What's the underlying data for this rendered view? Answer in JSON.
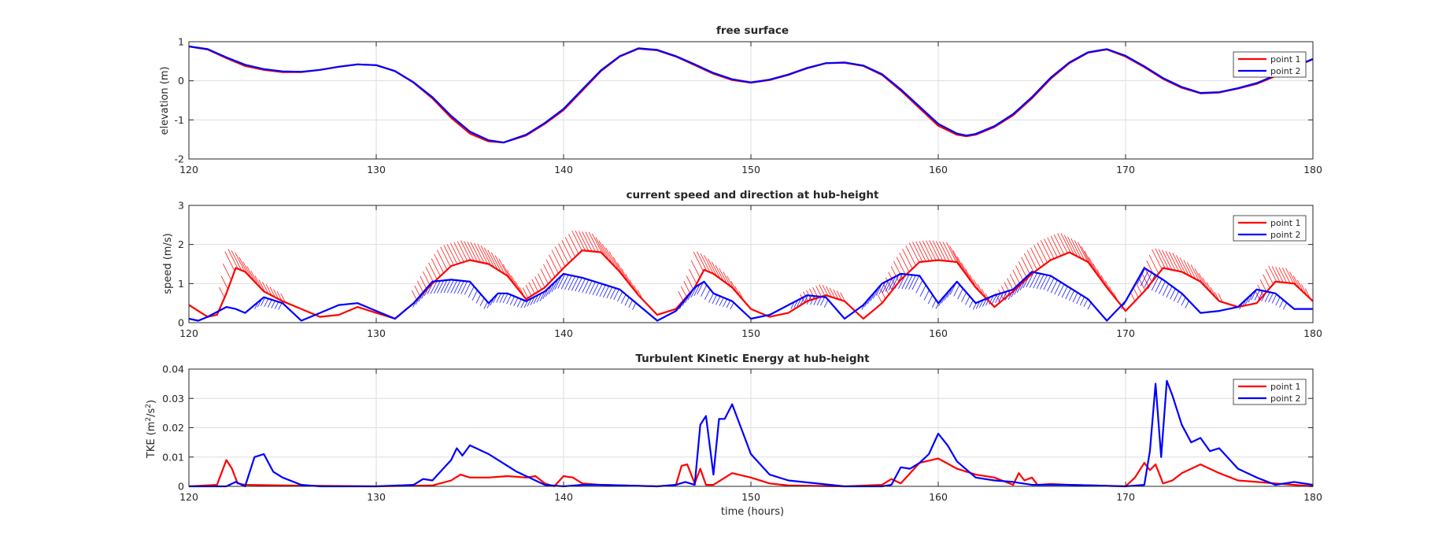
{
  "chart_data": [
    {
      "type": "line",
      "title": "free surface",
      "xlabel": "",
      "ylabel": "elevation (m)",
      "xlim": [
        120,
        180
      ],
      "ylim": [
        -2,
        1
      ],
      "xticks": [
        "120",
        "130",
        "140",
        "150",
        "160",
        "170",
        "180"
      ],
      "yticks": [
        "-2",
        "-1",
        "0",
        "1"
      ],
      "grid": true,
      "legend_position": "top-right",
      "series": [
        {
          "name": "point 1",
          "color": "#ff0000",
          "x": [
            120,
            121,
            122,
            123,
            124,
            125,
            126,
            127,
            128,
            129,
            130,
            131,
            132,
            133,
            134,
            135,
            136,
            136.8,
            138,
            139,
            140,
            141,
            142,
            143,
            144,
            145,
            146,
            147,
            148,
            149,
            150,
            151,
            152,
            153,
            154,
            155,
            156,
            157,
            158,
            159,
            160,
            161,
            161.5,
            162,
            163,
            164,
            165,
            166,
            167,
            168,
            169,
            170,
            171,
            172,
            173,
            174,
            175,
            176,
            177,
            178,
            179,
            180
          ],
          "y": [
            0.88,
            0.8,
            0.58,
            0.38,
            0.28,
            0.22,
            0.22,
            0.28,
            0.36,
            0.42,
            0.4,
            0.25,
            -0.05,
            -0.45,
            -0.95,
            -1.35,
            -1.55,
            -1.58,
            -1.4,
            -1.1,
            -0.75,
            -0.25,
            0.25,
            0.62,
            0.82,
            0.78,
            0.62,
            0.4,
            0.18,
            0.02,
            -0.05,
            0.02,
            0.15,
            0.32,
            0.45,
            0.46,
            0.38,
            0.15,
            -0.25,
            -0.7,
            -1.15,
            -1.38,
            -1.42,
            -1.38,
            -1.18,
            -0.88,
            -0.45,
            0.05,
            0.45,
            0.72,
            0.8,
            0.62,
            0.35,
            0.05,
            -0.18,
            -0.32,
            -0.3,
            -0.2,
            -0.08,
            0.12,
            0.35,
            0.55
          ]
        },
        {
          "name": "point 2",
          "color": "#0000ff",
          "x": [
            120,
            121,
            122,
            123,
            124,
            125,
            126,
            127,
            128,
            129,
            130,
            131,
            132,
            133,
            134,
            135,
            136,
            136.8,
            138,
            139,
            140,
            141,
            142,
            143,
            144,
            145,
            146,
            147,
            148,
            149,
            150,
            151,
            152,
            153,
            154,
            155,
            156,
            157,
            158,
            159,
            160,
            161,
            161.5,
            162,
            163,
            164,
            165,
            166,
            167,
            168,
            169,
            170,
            171,
            172,
            173,
            174,
            175,
            176,
            177,
            178,
            179,
            180
          ],
          "y": [
            0.88,
            0.81,
            0.6,
            0.41,
            0.3,
            0.24,
            0.23,
            0.28,
            0.36,
            0.42,
            0.4,
            0.25,
            -0.04,
            -0.42,
            -0.9,
            -1.3,
            -1.52,
            -1.58,
            -1.38,
            -1.08,
            -0.72,
            -0.22,
            0.27,
            0.63,
            0.83,
            0.79,
            0.63,
            0.42,
            0.2,
            0.04,
            -0.04,
            0.03,
            0.16,
            0.33,
            0.45,
            0.47,
            0.39,
            0.17,
            -0.22,
            -0.66,
            -1.1,
            -1.35,
            -1.4,
            -1.36,
            -1.16,
            -0.85,
            -0.42,
            0.08,
            0.47,
            0.73,
            0.81,
            0.64,
            0.37,
            0.07,
            -0.16,
            -0.31,
            -0.29,
            -0.19,
            -0.06,
            0.14,
            0.36,
            0.56
          ]
        }
      ]
    },
    {
      "type": "line",
      "title": "current speed and direction at hub-height",
      "xlabel": "",
      "ylabel": "speed (m/s)",
      "xlim": [
        120,
        180
      ],
      "ylim": [
        0,
        3
      ],
      "xticks": [
        "120",
        "130",
        "140",
        "150",
        "160",
        "170",
        "180"
      ],
      "yticks": [
        "0",
        "1",
        "2",
        "3"
      ],
      "grid": true,
      "legend_position": "top-right",
      "direction_hatching": true,
      "series": [
        {
          "name": "point 1",
          "color": "#ff0000",
          "x": [
            120,
            121,
            121.5,
            122,
            122.5,
            123,
            124,
            125,
            126,
            127,
            128,
            129,
            130,
            131,
            132,
            133,
            134,
            135,
            136,
            137,
            138,
            139,
            140,
            141,
            142,
            143,
            144,
            145,
            146,
            147,
            147.5,
            148,
            149,
            150,
            151,
            152,
            153,
            154,
            155,
            156,
            157,
            158,
            159,
            160,
            161,
            162,
            163,
            164,
            165,
            166,
            167,
            168,
            169,
            170,
            171,
            172,
            173,
            174,
            175,
            176,
            177,
            178,
            179,
            180
          ],
          "y": [
            0.45,
            0.15,
            0.2,
            0.75,
            1.4,
            1.3,
            0.8,
            0.55,
            0.35,
            0.15,
            0.2,
            0.4,
            0.25,
            0.1,
            0.5,
            1.0,
            1.45,
            1.6,
            1.5,
            1.2,
            0.6,
            0.9,
            1.4,
            1.85,
            1.8,
            1.3,
            0.7,
            0.2,
            0.35,
            0.9,
            1.35,
            1.25,
            0.9,
            0.35,
            0.15,
            0.25,
            0.55,
            0.7,
            0.55,
            0.1,
            0.5,
            1.1,
            1.55,
            1.6,
            1.55,
            0.9,
            0.4,
            0.8,
            1.25,
            1.6,
            1.8,
            1.55,
            0.9,
            0.3,
            0.8,
            1.4,
            1.3,
            1.05,
            0.55,
            0.4,
            0.5,
            1.05,
            1.0,
            0.55
          ]
        },
        {
          "name": "point 2",
          "color": "#0000ff",
          "x": [
            120,
            120.5,
            121,
            122,
            122.5,
            123,
            124,
            125,
            126,
            127,
            128,
            129,
            130,
            131,
            132,
            133,
            134,
            135,
            136,
            136.5,
            137,
            138,
            139,
            140,
            141,
            142,
            143,
            144,
            145,
            146,
            147,
            147.5,
            148,
            149,
            150,
            151,
            152,
            153,
            154,
            155,
            156,
            157,
            158,
            159,
            160,
            161,
            162,
            163,
            164,
            165,
            166,
            167,
            168,
            169,
            170,
            171,
            172,
            173,
            174,
            175,
            176,
            177,
            178,
            179,
            180
          ],
          "y": [
            0.1,
            0.05,
            0.15,
            0.4,
            0.35,
            0.25,
            0.65,
            0.5,
            0.05,
            0.25,
            0.45,
            0.5,
            0.3,
            0.1,
            0.5,
            1.05,
            1.1,
            1.05,
            0.5,
            0.75,
            0.75,
            0.55,
            0.8,
            1.25,
            1.15,
            1.0,
            0.85,
            0.45,
            0.05,
            0.3,
            0.9,
            1.05,
            0.75,
            0.55,
            0.1,
            0.2,
            0.45,
            0.7,
            0.65,
            0.1,
            0.45,
            1.0,
            1.25,
            1.2,
            0.5,
            1.05,
            0.5,
            0.7,
            0.85,
            1.3,
            1.2,
            0.9,
            0.6,
            0.05,
            0.55,
            1.4,
            1.1,
            0.75,
            0.25,
            0.3,
            0.4,
            0.85,
            0.75,
            0.35,
            0.35
          ]
        }
      ]
    },
    {
      "type": "line",
      "title": "Turbulent Kinetic Energy at hub-height",
      "xlabel": "time (hours)",
      "ylabel_base": "TKE (m",
      "ylabel_sup1": "2",
      "ylabel_mid": "/s",
      "ylabel_sup2": "2",
      "ylabel_end": ")",
      "xlim": [
        120,
        180
      ],
      "ylim": [
        0,
        0.04
      ],
      "xticks": [
        "120",
        "130",
        "140",
        "150",
        "160",
        "170",
        "180"
      ],
      "yticks": [
        "0",
        "0.01",
        "0.02",
        "0.03",
        "0.04"
      ],
      "grid": true,
      "legend_position": "top-right",
      "series": [
        {
          "name": "point 1",
          "color": "#ff0000",
          "x": [
            120,
            121.5,
            122,
            122.3,
            122.6,
            123,
            125,
            130,
            133,
            134,
            134.5,
            135,
            136,
            137,
            138,
            138.5,
            139,
            139.5,
            140,
            140.5,
            141,
            142,
            145,
            146,
            146.3,
            146.6,
            147,
            147.3,
            147.6,
            148,
            149,
            150,
            151,
            152,
            155,
            157,
            157.5,
            158,
            159,
            160,
            161,
            162,
            163,
            164,
            164.3,
            164.6,
            165,
            165.3,
            166,
            167,
            170,
            170.5,
            171,
            171.3,
            171.6,
            172,
            172.5,
            173,
            174,
            175,
            176,
            177,
            178,
            179,
            180
          ],
          "y": [
            0,
            0.0005,
            0.009,
            0.006,
            0.001,
            0.0005,
            0.0003,
            0,
            0.0003,
            0.002,
            0.004,
            0.003,
            0.003,
            0.0035,
            0.003,
            0.0035,
            0.001,
            0,
            0.0035,
            0.003,
            0.001,
            0.0005,
            0,
            0.0005,
            0.007,
            0.0075,
            0.001,
            0.006,
            0.0005,
            0.0005,
            0.0045,
            0.003,
            0.001,
            0.0003,
            0,
            0.0005,
            0.0025,
            0.001,
            0.008,
            0.0095,
            0.006,
            0.004,
            0.003,
            0.0005,
            0.0045,
            0.002,
            0.003,
            0.0005,
            0.0008,
            0.0005,
            0,
            0.003,
            0.008,
            0.0055,
            0.0075,
            0.001,
            0.002,
            0.0045,
            0.0075,
            0.0045,
            0.002,
            0.0015,
            0.001,
            0.0005,
            0
          ]
        },
        {
          "name": "point 2",
          "color": "#0000ff",
          "x": [
            120,
            122,
            122.5,
            123,
            123.5,
            124,
            124.5,
            125,
            126,
            127,
            130,
            132,
            132.5,
            133,
            134,
            134.3,
            134.6,
            135,
            136,
            137,
            137.5,
            138,
            139,
            140,
            141,
            142,
            145,
            146,
            146.5,
            147,
            147.3,
            147.6,
            148,
            148.3,
            148.6,
            149,
            150,
            151,
            152,
            155,
            157,
            157.5,
            158,
            158.5,
            159,
            159.5,
            160,
            160.5,
            161,
            162,
            163,
            164,
            165,
            166,
            167,
            170,
            171,
            171.3,
            171.6,
            171.9,
            172.2,
            172.5,
            173,
            173.5,
            174,
            174.5,
            175,
            176,
            177,
            178,
            179,
            180
          ],
          "y": [
            0,
            0,
            0.0015,
            0,
            0.01,
            0.011,
            0.005,
            0.003,
            0.0005,
            0,
            0,
            0.0005,
            0.0025,
            0.002,
            0.009,
            0.013,
            0.0105,
            0.014,
            0.011,
            0.007,
            0.005,
            0.0035,
            0.0005,
            0,
            0.0005,
            0.0005,
            0,
            0.0005,
            0.0015,
            0.0005,
            0.021,
            0.024,
            0.004,
            0.023,
            0.023,
            0.028,
            0.011,
            0.004,
            0.002,
            0,
            0,
            0.0005,
            0.0065,
            0.006,
            0.008,
            0.011,
            0.018,
            0.014,
            0.0085,
            0.003,
            0.002,
            0.0015,
            0.0005,
            0.0005,
            0.0005,
            0,
            0.0005,
            0.012,
            0.035,
            0.01,
            0.036,
            0.031,
            0.021,
            0.015,
            0.0165,
            0.012,
            0.013,
            0.006,
            0.003,
            0.0005,
            0.0015,
            0.0005
          ]
        }
      ]
    }
  ]
}
